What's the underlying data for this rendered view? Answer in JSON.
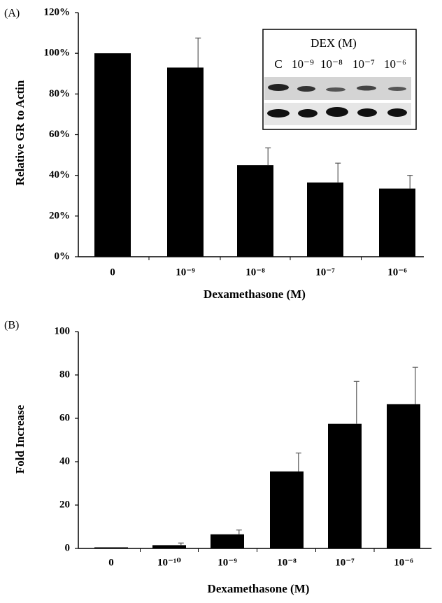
{
  "chart_data": [
    {
      "type": "bar",
      "panel": "(A)",
      "y_label": "Relative GR to Actin",
      "x_label": "Dexamethasone (M)",
      "categories": [
        "0",
        "10⁻⁹",
        "10⁻⁸",
        "10⁻⁷",
        "10⁻⁶"
      ],
      "values": [
        100,
        93,
        45,
        36.5,
        33.5
      ],
      "errors": [
        null,
        14.5,
        8.5,
        9.5,
        6.5
      ],
      "color": "#000000",
      "ylim": [
        0,
        120
      ],
      "yticks": [
        {
          "value": 0,
          "label": "0%"
        },
        {
          "value": 20,
          "label": "20%"
        },
        {
          "value": 40,
          "label": "40%"
        },
        {
          "value": 60,
          "label": "60%"
        },
        {
          "value": 80,
          "label": "80%"
        },
        {
          "value": 100,
          "label": "100%"
        },
        {
          "value": 120,
          "label": "120%"
        }
      ],
      "inset": {
        "title": "DEX (M)",
        "lanes": [
          "C",
          "10⁻⁹",
          "10⁻⁸",
          "10⁻⁷",
          "10⁻⁶"
        ]
      }
    },
    {
      "type": "bar",
      "panel": "(B)",
      "y_label": "Fold Increase",
      "x_label": "Dexamethasone (M)",
      "categories": [
        "0",
        "10⁻¹⁰",
        "10⁻⁹",
        "10⁻⁸",
        "10⁻⁷",
        "10⁻⁶"
      ],
      "values": [
        0.5,
        1.5,
        6.5,
        35.5,
        57.5,
        66.5
      ],
      "errors": [
        null,
        1,
        2,
        8.5,
        19.5,
        17
      ],
      "color": "#000000",
      "ylim": [
        0,
        100
      ],
      "yticks": [
        0,
        20,
        40,
        60,
        80,
        100
      ]
    }
  ]
}
